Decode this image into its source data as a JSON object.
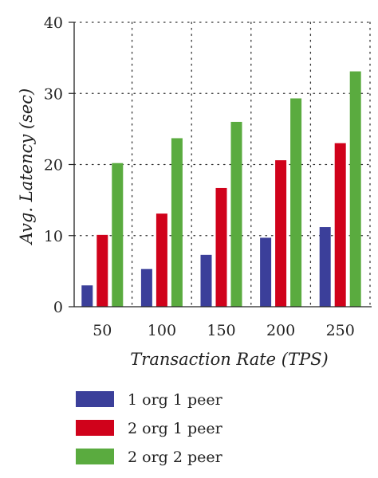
{
  "chart_data": {
    "type": "bar",
    "title": "",
    "xlabel": "Transaction Rate (TPS)",
    "ylabel": "Avg. Latency (sec)",
    "categories": [
      "50",
      "100",
      "150",
      "200",
      "250"
    ],
    "ylim": [
      0,
      40
    ],
    "yticks": [
      "0",
      "10",
      "20",
      "30",
      "40"
    ],
    "grid": true,
    "legend_position": "bottom",
    "series": [
      {
        "name": "1 org 1 peer",
        "color": "#3b3f9a",
        "values": [
          3.0,
          5.3,
          7.3,
          9.7,
          11.2
        ]
      },
      {
        "name": "2 org 1 peer",
        "color": "#d0021b",
        "values": [
          10.1,
          13.1,
          16.7,
          20.6,
          23.0
        ]
      },
      {
        "name": "2 org 2 peer",
        "color": "#5aab3f",
        "values": [
          20.2,
          23.7,
          26.0,
          29.3,
          33.1
        ]
      }
    ]
  }
}
